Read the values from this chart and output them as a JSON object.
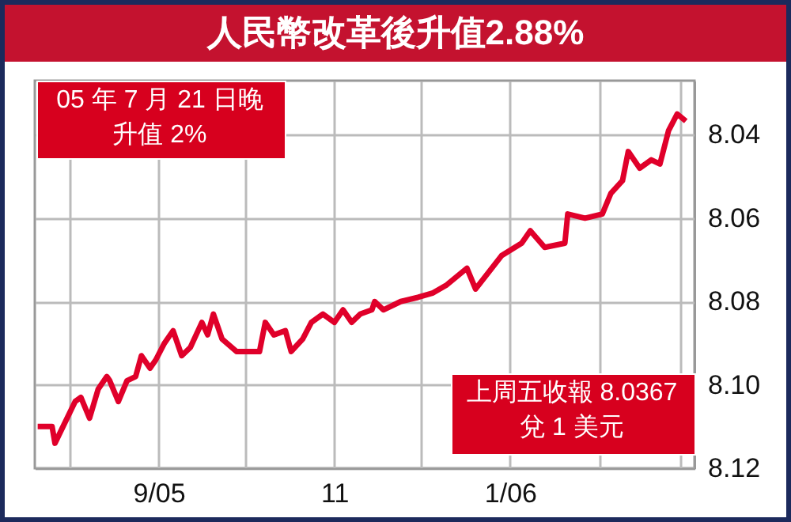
{
  "chart_data": {
    "type": "line",
    "title": "人民幣改革後升值2.88%",
    "annotations": [
      "05 年 7 月 21 日晚升值 2%",
      "上周五收報 8.0367兌 1 美元"
    ],
    "x": [
      "2005-07-21",
      "2005-07-26",
      "2005-07-27",
      "2005-08-03",
      "2005-08-05",
      "2005-08-08",
      "2005-08-11",
      "2005-08-14",
      "2005-08-15",
      "2005-08-18",
      "2005-08-21",
      "2005-08-24",
      "2005-08-26",
      "2005-08-29",
      "2005-08-31",
      "2005-09-03",
      "2005-09-06",
      "2005-09-09",
      "2005-09-12",
      "2005-09-16",
      "2005-09-18",
      "2005-09-20",
      "2005-09-23",
      "2005-09-28",
      "2005-10-06",
      "2005-10-08",
      "2005-10-11",
      "2005-10-15",
      "2005-10-17",
      "2005-10-21",
      "2005-10-24",
      "2005-10-28",
      "2005-11-01",
      "2005-11-04",
      "2005-11-07",
      "2005-11-10",
      "2005-11-14",
      "2005-11-15",
      "2005-11-18",
      "2005-11-24",
      "2005-11-30",
      "2005-12-05",
      "2005-12-10",
      "2005-12-17",
      "2005-12-20",
      "2005-12-29",
      "2006-01-05",
      "2006-01-08",
      "2006-01-13",
      "2006-01-20",
      "2006-01-21",
      "2006-01-27",
      "2006-02-02",
      "2006-02-05",
      "2006-02-09",
      "2006-02-11",
      "2006-02-15",
      "2006-02-19",
      "2006-02-22",
      "2006-02-25",
      "2006-02-28",
      "2006-03-03"
    ],
    "series": [
      {
        "color": "#e0002a",
        "values": [
          8.11,
          8.11,
          8.114,
          8.104,
          8.103,
          8.108,
          8.101,
          8.098,
          8.099,
          8.104,
          8.099,
          8.098,
          8.093,
          8.096,
          8.094,
          8.09,
          8.087,
          8.093,
          8.091,
          8.085,
          8.088,
          8.083,
          8.089,
          8.092,
          8.092,
          8.085,
          8.088,
          8.087,
          8.092,
          8.089,
          8.085,
          8.083,
          8.085,
          8.082,
          8.085,
          8.083,
          8.082,
          8.08,
          8.082,
          8.08,
          8.079,
          8.078,
          8.076,
          8.072,
          8.077,
          8.069,
          8.066,
          8.063,
          8.067,
          8.066,
          8.059,
          8.06,
          8.059,
          8.054,
          8.051,
          8.044,
          8.048,
          8.046,
          8.047,
          8.039,
          8.035,
          8.0367
        ]
      }
    ],
    "xlim": [
      "2005-07-20",
      "2006-03-06"
    ],
    "xticks": [
      {
        "value": "2005-08-01",
        "label": null
      },
      {
        "value": "2005-09-01",
        "label": "9/05"
      },
      {
        "value": "2005-10-01",
        "label": null
      },
      {
        "value": "2005-11-01",
        "label": "11"
      },
      {
        "value": "2005-12-01",
        "label": null
      },
      {
        "value": "2006-01-01",
        "label": "1/06"
      },
      {
        "value": "2006-02-01",
        "label": null
      },
      {
        "value": "2006-03-01",
        "label": null
      }
    ],
    "ylim": [
      8.12,
      8.027
    ],
    "yticks": [
      8.04,
      8.06,
      8.08,
      {
        "value": 8.1,
        "label": "8.10"
      },
      8.12
    ],
    "grid": true
  }
}
